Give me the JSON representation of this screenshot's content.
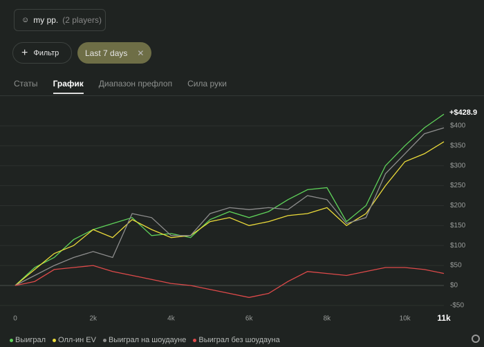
{
  "header": {
    "player": "my pp.",
    "players_count": "(2 players)"
  },
  "filters": {
    "filter_button": "Фильтр",
    "date_chip": "Last 7 days"
  },
  "tabs": [
    "Статы",
    "График",
    "Диапазон префлоп",
    "Сила руки"
  ],
  "chart_data": {
    "type": "line",
    "annotation": "+$428.9",
    "x": [
      0,
      500,
      1000,
      1500,
      2000,
      2500,
      3000,
      3500,
      4000,
      4500,
      5000,
      5500,
      6000,
      6500,
      7000,
      7500,
      8000,
      8500,
      9000,
      9500,
      10000,
      10500,
      11000
    ],
    "series": [
      {
        "name": "Выиграл",
        "color": "#5fd35a",
        "values": [
          0,
          45,
          70,
          115,
          140,
          155,
          170,
          125,
          130,
          120,
          165,
          185,
          170,
          185,
          215,
          240,
          245,
          160,
          200,
          300,
          350,
          395,
          429
        ]
      },
      {
        "name": "Олл-ин EV",
        "color": "#eddc3a",
        "values": [
          0,
          40,
          80,
          100,
          140,
          120,
          165,
          140,
          120,
          125,
          160,
          170,
          150,
          160,
          175,
          180,
          195,
          150,
          180,
          250,
          310,
          330,
          360
        ]
      },
      {
        "name": "Выиграл на шоудауне",
        "color": "#8e8e8e",
        "values": [
          0,
          25,
          50,
          70,
          85,
          70,
          180,
          170,
          125,
          125,
          180,
          195,
          190,
          195,
          190,
          225,
          215,
          155,
          170,
          280,
          330,
          380,
          395
        ]
      },
      {
        "name": "Выиграл без шоудауна",
        "color": "#df4a4a",
        "values": [
          0,
          10,
          40,
          45,
          50,
          35,
          25,
          15,
          5,
          0,
          -10,
          -20,
          -30,
          -20,
          10,
          35,
          30,
          25,
          35,
          45,
          45,
          40,
          30
        ]
      }
    ],
    "xlim": [
      0,
      11000
    ],
    "xticks": [
      0,
      {
        "value": 2000,
        "label": "2k"
      },
      {
        "value": 4000,
        "label": "4k"
      },
      {
        "value": 6000,
        "label": "6k"
      },
      {
        "value": 8000,
        "label": "8k"
      },
      {
        "value": 10000,
        "label": "10k"
      },
      {
        "value": 11000,
        "label": "11k"
      }
    ],
    "ylim": [
      -65,
      455
    ],
    "yticks": [
      {
        "value": -50,
        "label": "-$50"
      },
      {
        "value": 0,
        "label": "$0"
      },
      {
        "value": 50,
        "label": "$50"
      },
      {
        "value": 100,
        "label": "$100"
      },
      {
        "value": 150,
        "label": "$150"
      },
      {
        "value": 200,
        "label": "$200"
      },
      {
        "value": 250,
        "label": "$250"
      },
      {
        "value": 300,
        "label": "$300"
      },
      {
        "value": 350,
        "label": "$350"
      },
      {
        "value": 400,
        "label": "$400"
      }
    ],
    "grid": true
  }
}
